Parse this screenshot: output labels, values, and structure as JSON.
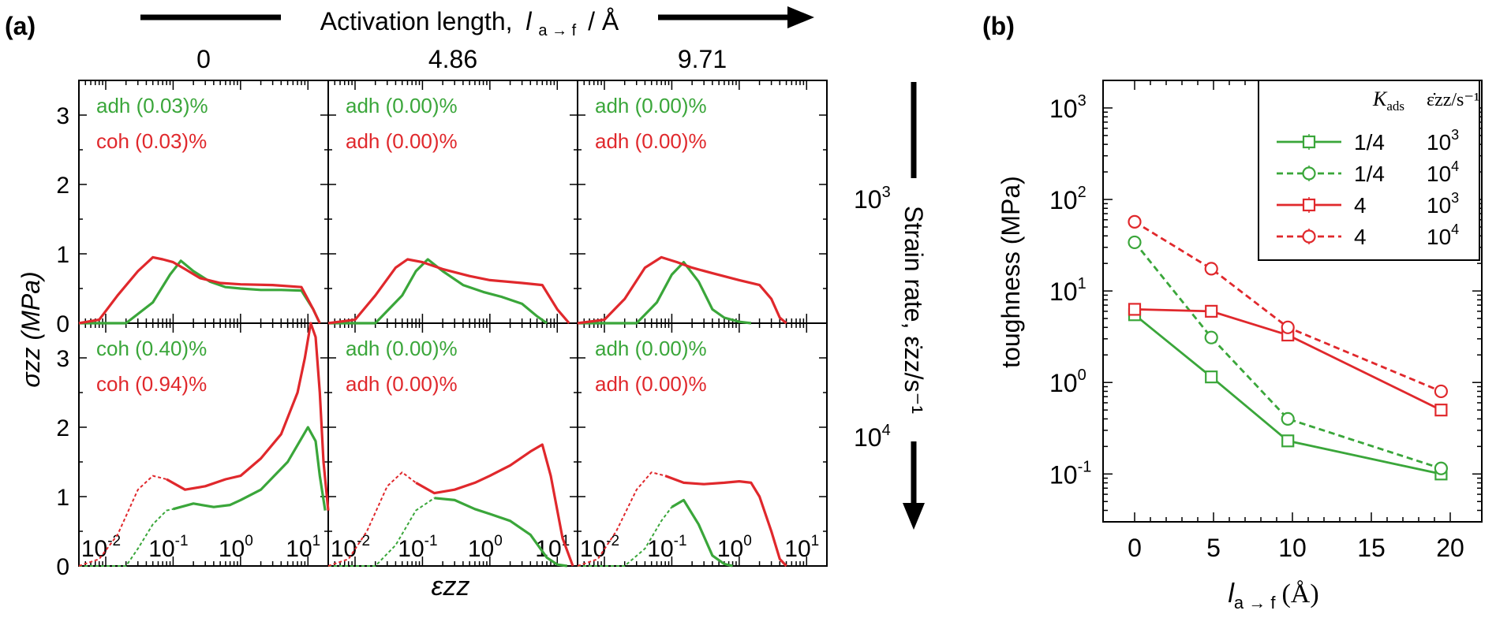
{
  "panel_a": {
    "label": "(a)",
    "top_arrow_label_prefix": "Activation length,",
    "top_arrow_label_var": "l",
    "top_arrow_label_sub": "a → f",
    "top_arrow_label_suffix": "/ Å",
    "column_headers": [
      "0",
      "4.86",
      "9.71"
    ],
    "row_headers": [
      "10",
      "10"
    ],
    "row_header_exponents": [
      "3",
      "4"
    ],
    "side_arrow_label": "Strain rate, ε̇zz/s⁻¹",
    "ylabel": "σzz (MPa)",
    "xlabel": "εzz",
    "y_ticks": [
      "0",
      "1",
      "2",
      "3"
    ],
    "x_tick_bases": [
      "10",
      "10",
      "10",
      "10"
    ],
    "x_tick_exponents": [
      "-2",
      "-1",
      "0",
      "1"
    ],
    "subplots": [
      {
        "row": 0,
        "col": 0,
        "green_text": "adh (0.03)%",
        "red_text": "coh (0.03)%"
      },
      {
        "row": 0,
        "col": 1,
        "green_text": "adh (0.00)%",
        "red_text": "adh (0.00)%"
      },
      {
        "row": 0,
        "col": 2,
        "green_text": "adh (0.00)%",
        "red_text": "adh (0.00)%"
      },
      {
        "row": 1,
        "col": 0,
        "green_text": "coh (0.40)%",
        "red_text": "coh (0.94)%"
      },
      {
        "row": 1,
        "col": 1,
        "green_text": "adh (0.00)%",
        "red_text": "adh (0.00)%"
      },
      {
        "row": 1,
        "col": 2,
        "green_text": "adh (0.00)%",
        "red_text": "adh (0.00)%"
      }
    ]
  },
  "panel_b": {
    "label": "(b)",
    "ylabel": "toughness (MPa)",
    "xlabel_var": "l",
    "xlabel_sub": "a → f",
    "xlabel_unit": "(Å)",
    "x_ticks": [
      "0",
      "5",
      "10",
      "15",
      "20"
    ],
    "y_tick_base": "10",
    "y_tick_exponents": [
      "-1",
      "0",
      "1",
      "2",
      "3"
    ],
    "legend_header_k": "K",
    "legend_header_k_sub": "ads",
    "legend_header_rate": "ε̇zz/s⁻¹",
    "legend_rows": [
      {
        "k": "1/4",
        "rate_base": "10",
        "rate_exp": "3"
      },
      {
        "k": "1/4",
        "rate_base": "10",
        "rate_exp": "4"
      },
      {
        "k": "4",
        "rate_base": "10",
        "rate_exp": "3"
      },
      {
        "k": "4",
        "rate_base": "10",
        "rate_exp": "4"
      }
    ]
  },
  "chart_data": [
    {
      "type": "line",
      "title": "(a)",
      "xlabel": "εzz",
      "ylabel": "σzz (MPa)",
      "x_scale": "log",
      "xlim": [
        0.004,
        20
      ],
      "ylim": [
        0,
        3.5
      ],
      "grid": false,
      "colors": {
        "green": "#3aa63a",
        "red": "#e0282c"
      },
      "facets": {
        "columns_title": "Activation length, l a→f / Å",
        "columns": [
          "0",
          "4.86",
          "9.71"
        ],
        "rows_title": "Strain rate, ε̇zz/s⁻¹",
        "rows": [
          "10^3",
          "10^4"
        ]
      },
      "subplots": [
        {
          "row": 0,
          "col": 0,
          "series": [
            {
              "color": "green",
              "style": "solid",
              "x": [
                0.004,
                0.02,
                0.05,
                0.09,
                0.13,
                0.2,
                0.35,
                0.6,
                1,
                2,
                4,
                8,
                12,
                15
              ],
              "y": [
                0,
                0,
                0.3,
                0.7,
                0.9,
                0.75,
                0.6,
                0.52,
                0.5,
                0.48,
                0.48,
                0.47,
                0.2,
                0
              ]
            },
            {
              "color": "red",
              "style": "solid",
              "x": [
                0.004,
                0.008,
                0.015,
                0.03,
                0.05,
                0.07,
                0.1,
                0.15,
                0.25,
                0.5,
                1,
                3,
                8,
                12,
                15
              ],
              "y": [
                0,
                0.05,
                0.4,
                0.75,
                0.95,
                0.92,
                0.88,
                0.78,
                0.65,
                0.58,
                0.56,
                0.55,
                0.52,
                0.2,
                0
              ]
            }
          ]
        },
        {
          "row": 0,
          "col": 1,
          "series": [
            {
              "color": "green",
              "style": "solid",
              "x": [
                0.004,
                0.02,
                0.05,
                0.08,
                0.12,
                0.2,
                0.4,
                0.8,
                1.5,
                3,
                5,
                7
              ],
              "y": [
                0,
                0,
                0.4,
                0.75,
                0.92,
                0.75,
                0.55,
                0.45,
                0.38,
                0.28,
                0.1,
                0
              ]
            },
            {
              "color": "red",
              "style": "solid",
              "x": [
                0.004,
                0.01,
                0.02,
                0.04,
                0.06,
                0.1,
                0.2,
                0.5,
                1,
                3,
                6,
                10,
                15
              ],
              "y": [
                0,
                0.05,
                0.4,
                0.8,
                0.92,
                0.88,
                0.78,
                0.68,
                0.62,
                0.58,
                0.55,
                0.2,
                0
              ]
            }
          ]
        },
        {
          "row": 0,
          "col": 2,
          "series": [
            {
              "color": "green",
              "style": "solid",
              "x": [
                0.004,
                0.03,
                0.06,
                0.1,
                0.15,
                0.25,
                0.4,
                0.6,
                1,
                1.5
              ],
              "y": [
                0,
                0,
                0.3,
                0.7,
                0.88,
                0.6,
                0.2,
                0.08,
                0.02,
                0
              ]
            },
            {
              "color": "red",
              "style": "solid",
              "x": [
                0.004,
                0.01,
                0.02,
                0.04,
                0.07,
                0.12,
                0.2,
                0.4,
                1,
                2,
                3,
                4,
                5
              ],
              "y": [
                0,
                0.05,
                0.35,
                0.8,
                0.95,
                0.88,
                0.8,
                0.72,
                0.62,
                0.55,
                0.35,
                0.08,
                0
              ]
            }
          ]
        },
        {
          "row": 1,
          "col": 0,
          "series": [
            {
              "color": "green",
              "style": "dashed",
              "x": [
                0.004,
                0.02,
                0.03,
                0.05,
                0.08,
                0.1
              ],
              "y": [
                0,
                0,
                0.25,
                0.6,
                0.8,
                0.82
              ]
            },
            {
              "color": "green",
              "style": "solid",
              "x": [
                0.1,
                0.2,
                0.4,
                0.7,
                1,
                2,
                5,
                10,
                13,
                15,
                18
              ],
              "y": [
                0.82,
                0.9,
                0.85,
                0.88,
                0.95,
                1.1,
                1.5,
                2.0,
                1.8,
                1.3,
                0.8
              ]
            },
            {
              "color": "red",
              "style": "dashed",
              "x": [
                0.004,
                0.008,
                0.015,
                0.03,
                0.05,
                0.08
              ],
              "y": [
                0,
                0.1,
                0.45,
                1.1,
                1.3,
                1.25
              ]
            },
            {
              "color": "red",
              "style": "solid",
              "x": [
                0.08,
                0.15,
                0.3,
                0.6,
                1,
                2,
                4,
                7,
                9,
                11,
                13,
                15,
                17,
                20
              ],
              "y": [
                1.25,
                1.1,
                1.15,
                1.25,
                1.3,
                1.55,
                1.9,
                2.5,
                3.0,
                3.5,
                3.3,
                2.5,
                1.5,
                0.8
              ]
            }
          ]
        },
        {
          "row": 1,
          "col": 1,
          "series": [
            {
              "color": "green",
              "style": "dashed",
              "x": [
                0.004,
                0.02,
                0.04,
                0.08,
                0.15
              ],
              "y": [
                0,
                0,
                0.3,
                0.8,
                0.98
              ]
            },
            {
              "color": "green",
              "style": "solid",
              "x": [
                0.15,
                0.3,
                0.6,
                1,
                2,
                4,
                7,
                10,
                14
              ],
              "y": [
                0.98,
                0.95,
                0.82,
                0.75,
                0.65,
                0.45,
                0.12,
                0.02,
                0
              ]
            },
            {
              "color": "red",
              "style": "dashed",
              "x": [
                0.004,
                0.008,
                0.015,
                0.03,
                0.05,
                0.08
              ],
              "y": [
                0,
                0.1,
                0.5,
                1.15,
                1.35,
                1.2
              ]
            },
            {
              "color": "red",
              "style": "solid",
              "x": [
                0.08,
                0.15,
                0.3,
                0.6,
                1,
                2,
                4,
                6,
                8,
                12,
                17
              ],
              "y": [
                1.2,
                1.05,
                1.1,
                1.2,
                1.3,
                1.45,
                1.65,
                1.75,
                1.3,
                0.4,
                0
              ]
            }
          ]
        },
        {
          "row": 1,
          "col": 2,
          "series": [
            {
              "color": "green",
              "style": "dashed",
              "x": [
                0.004,
                0.02,
                0.04,
                0.07,
                0.1
              ],
              "y": [
                0,
                0,
                0.25,
                0.65,
                0.85
              ]
            },
            {
              "color": "green",
              "style": "solid",
              "x": [
                0.1,
                0.15,
                0.25,
                0.4,
                0.6,
                0.8
              ],
              "y": [
                0.85,
                0.95,
                0.6,
                0.15,
                0.03,
                0
              ]
            },
            {
              "color": "red",
              "style": "dashed",
              "x": [
                0.004,
                0.008,
                0.015,
                0.03,
                0.05,
                0.08
              ],
              "y": [
                0,
                0.1,
                0.5,
                1.1,
                1.35,
                1.3
              ]
            },
            {
              "color": "red",
              "style": "solid",
              "x": [
                0.08,
                0.15,
                0.3,
                0.6,
                1,
                1.5,
                2,
                3,
                4,
                5
              ],
              "y": [
                1.3,
                1.2,
                1.18,
                1.2,
                1.22,
                1.2,
                1.0,
                0.5,
                0.1,
                0
              ]
            }
          ]
        }
      ]
    },
    {
      "type": "line",
      "title": "(b)",
      "xlabel": "l a→f (Å)",
      "ylabel": "toughness (MPa)",
      "y_scale": "log",
      "xlim": [
        -2,
        22
      ],
      "ylim": [
        0.03,
        2000
      ],
      "grid": false,
      "legend_position": "top-right",
      "x": [
        0,
        4.86,
        9.71,
        19.42
      ],
      "series": [
        {
          "name": "1/4 10^3",
          "color": "#3aa63a",
          "style": "solid",
          "marker": "square",
          "values": [
            5.5,
            1.15,
            0.23,
            0.1
          ]
        },
        {
          "name": "1/4 10^4",
          "color": "#3aa63a",
          "style": "dashed",
          "marker": "circle",
          "values": [
            34,
            3.1,
            0.4,
            0.115
          ]
        },
        {
          "name": "4 10^3",
          "color": "#e0282c",
          "style": "solid",
          "marker": "square",
          "values": [
            6.3,
            6.0,
            3.3,
            0.5
          ]
        },
        {
          "name": "4 10^4",
          "color": "#e0282c",
          "style": "dashed",
          "marker": "circle",
          "values": [
            57,
            17.5,
            4.0,
            0.8
          ]
        }
      ]
    }
  ]
}
